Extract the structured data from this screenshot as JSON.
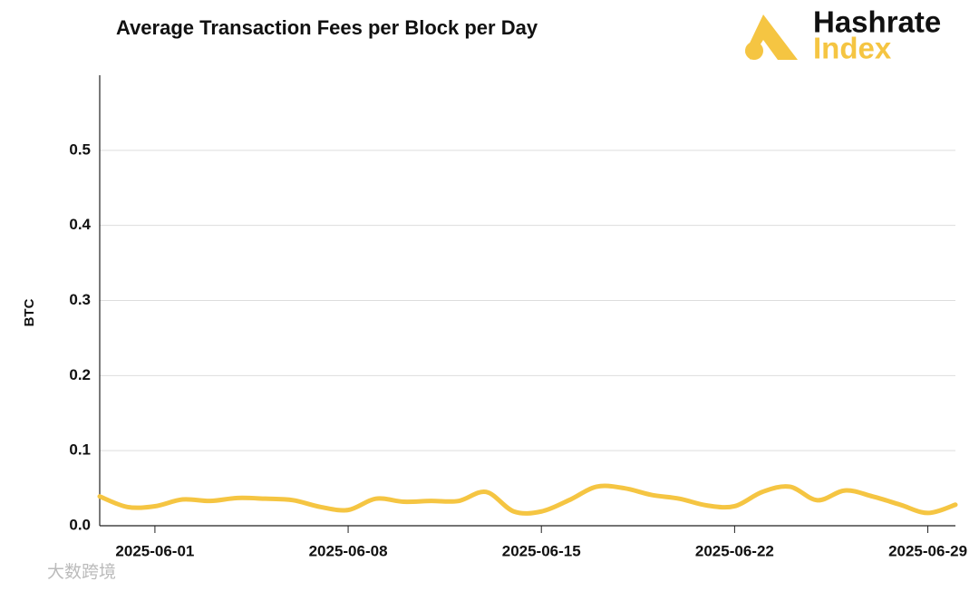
{
  "chart_data": {
    "type": "line",
    "title": "Average Transaction Fees per Block per Day",
    "logo": {
      "line1": "Hashrate",
      "line2": "Index"
    },
    "watermark": "大数跨境",
    "y_label": "BTC",
    "x": [
      "2025-05-30",
      "2025-05-31",
      "2025-06-01",
      "2025-06-02",
      "2025-06-03",
      "2025-06-04",
      "2025-06-05",
      "2025-06-06",
      "2025-06-07",
      "2025-06-08",
      "2025-06-09",
      "2025-06-10",
      "2025-06-11",
      "2025-06-12",
      "2025-06-13",
      "2025-06-14",
      "2025-06-15",
      "2025-06-16",
      "2025-06-17",
      "2025-06-18",
      "2025-06-19",
      "2025-06-20",
      "2025-06-21",
      "2025-06-22",
      "2025-06-23",
      "2025-06-24",
      "2025-06-25",
      "2025-06-26",
      "2025-06-27",
      "2025-06-28",
      "2025-06-29",
      "2025-06-30"
    ],
    "series": [
      {
        "name": "Average fees",
        "color": "#f5c542",
        "values": [
          0.039,
          0.025,
          0.026,
          0.035,
          0.033,
          0.037,
          0.036,
          0.034,
          0.025,
          0.021,
          0.036,
          0.032,
          0.033,
          0.033,
          0.045,
          0.019,
          0.019,
          0.034,
          0.052,
          0.05,
          0.041,
          0.036,
          0.027,
          0.026,
          0.045,
          0.052,
          0.034,
          0.047,
          0.039,
          0.028,
          0.017,
          0.028
        ]
      }
    ],
    "xlim": [
      "2025-05-30",
      "2025-06-30"
    ],
    "xticks": [
      "2025-06-01",
      "2025-06-08",
      "2025-06-15",
      "2025-06-22",
      "2025-06-29"
    ],
    "ylim": [
      0,
      0.6
    ],
    "yticks": [
      {
        "value": 0,
        "label": "0.0"
      },
      0.1,
      0.2,
      0.3,
      0.4,
      0.5
    ],
    "grid": true
  }
}
